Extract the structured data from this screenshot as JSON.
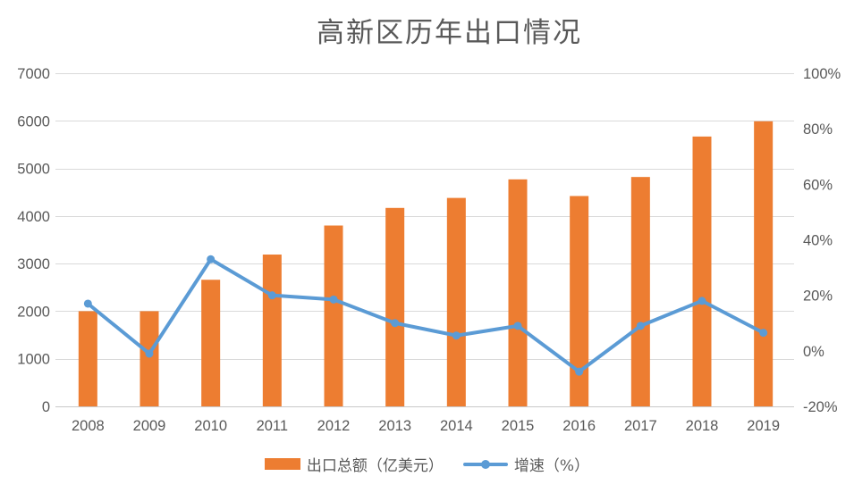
{
  "chart_data": {
    "type": "combo-bar-line",
    "title": "高新区历年出口情况",
    "categories": [
      "2008",
      "2009",
      "2010",
      "2011",
      "2012",
      "2013",
      "2014",
      "2015",
      "2016",
      "2017",
      "2018",
      "2019"
    ],
    "series": [
      {
        "name": "出口总额（亿美元）",
        "chart_type": "bar",
        "axis": "left",
        "color": "#ED7D31",
        "values": [
          2000,
          2000,
          2660,
          3190,
          3800,
          4170,
          4380,
          4770,
          4420,
          4820,
          5670,
          5990
        ]
      },
      {
        "name": "增速（%）",
        "chart_type": "line",
        "axis": "right",
        "color": "#5B9BD5",
        "values": [
          17,
          -1,
          33,
          20,
          18.5,
          10,
          5.5,
          9,
          -7.5,
          9,
          18,
          6.5
        ]
      }
    ],
    "left_axis": {
      "min": 0,
      "max": 7000,
      "step": 1000,
      "tick_labels": [
        "0",
        "1000",
        "2000",
        "3000",
        "4000",
        "5000",
        "6000",
        "7000"
      ]
    },
    "right_axis": {
      "min": -20,
      "max": 100,
      "step": 20,
      "tick_labels": [
        "-20%",
        "0%",
        "20%",
        "40%",
        "60%",
        "80%",
        "100%"
      ]
    },
    "grid": true,
    "legend_position": "bottom",
    "colors": {
      "grid": "#D9D9D9",
      "baseline": "#C9C9C9",
      "axis_text": "#595959",
      "title_text": "#595959",
      "background": "#FFFFFF"
    }
  }
}
